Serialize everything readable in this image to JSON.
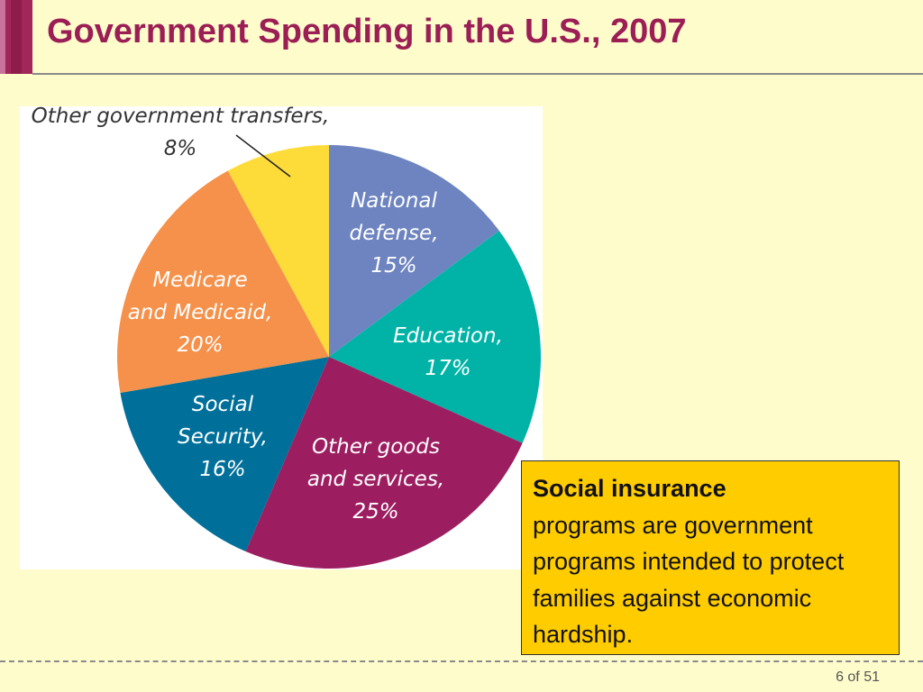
{
  "slide": {
    "title": "Government Spending in the U.S., 2007",
    "page_number": "6 of 51"
  },
  "callout": {
    "term": "Social insurance",
    "text": "programs are government programs intended to protect families against economic hardship."
  },
  "colors": {
    "background": "#fffccc",
    "title": "#9b1f55",
    "accent_bar": "#a1275a",
    "callout_fill": "#ffcc00"
  },
  "chart_data": {
    "type": "pie",
    "title": "",
    "slices": [
      {
        "label_lines": [
          "National",
          "defense,",
          "15%"
        ],
        "value": 15,
        "color": "#6e84c0"
      },
      {
        "label_lines": [
          "Education,",
          "17%"
        ],
        "value": 17,
        "color": "#00b3a6"
      },
      {
        "label_lines": [
          "Other goods",
          "and services,",
          "25%"
        ],
        "value": 25,
        "color": "#9c1e60"
      },
      {
        "label_lines": [
          "Social",
          "Security,",
          "16%"
        ],
        "value": 16,
        "color": "#00709a"
      },
      {
        "label_lines": [
          "Medicare",
          "and Medicaid,",
          "20%"
        ],
        "value": 20,
        "color": "#f5914a"
      },
      {
        "label_lines": [
          "Other government transfers,",
          "8%"
        ],
        "value": 8,
        "color": "#fddc3a"
      }
    ],
    "start_angle_deg": 0,
    "direction": "clockwise"
  }
}
